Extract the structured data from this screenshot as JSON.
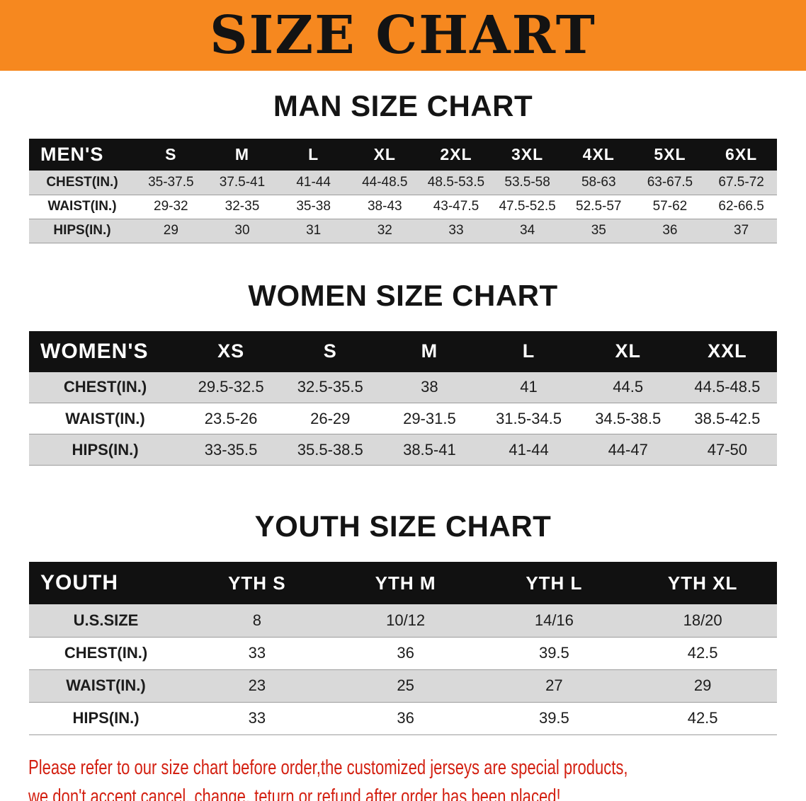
{
  "banner": {
    "title": "SIZE CHART"
  },
  "colors": {
    "banner_bg": "#f6881f",
    "header_bg": "#111111",
    "stripe_gray": "#d9d9d9",
    "footer_red": "#d32011"
  },
  "chart_data": [
    {
      "type": "table",
      "title": "MAN SIZE CHART",
      "header_label": "MEN'S",
      "columns": [
        "S",
        "M",
        "L",
        "XL",
        "2XL",
        "3XL",
        "4XL",
        "5XL",
        "6XL"
      ],
      "rows": [
        {
          "label": "CHEST(IN.)",
          "values": [
            "35-37.5",
            "37.5-41",
            "41-44",
            "44-48.5",
            "48.5-53.5",
            "53.5-58",
            "58-63",
            "63-67.5",
            "67.5-72"
          ]
        },
        {
          "label": "WAIST(IN.)",
          "values": [
            "29-32",
            "32-35",
            "35-38",
            "38-43",
            "43-47.5",
            "47.5-52.5",
            "52.5-57",
            "57-62",
            "62-66.5"
          ]
        },
        {
          "label": "HIPS(IN.)",
          "values": [
            "29",
            "30",
            "31",
            "32",
            "33",
            "34",
            "35",
            "36",
            "37"
          ]
        }
      ]
    },
    {
      "type": "table",
      "title": "WOMEN SIZE CHART",
      "header_label": "WOMEN'S",
      "columns": [
        "XS",
        "S",
        "M",
        "L",
        "XL",
        "XXL"
      ],
      "rows": [
        {
          "label": "CHEST(IN.)",
          "values": [
            "29.5-32.5",
            "32.5-35.5",
            "38",
            "41",
            "44.5",
            "44.5-48.5"
          ]
        },
        {
          "label": "WAIST(IN.)",
          "values": [
            "23.5-26",
            "26-29",
            "29-31.5",
            "31.5-34.5",
            "34.5-38.5",
            "38.5-42.5"
          ]
        },
        {
          "label": "HIPS(IN.)",
          "values": [
            "33-35.5",
            "35.5-38.5",
            "38.5-41",
            "41-44",
            "44-47",
            "47-50"
          ]
        }
      ]
    },
    {
      "type": "table",
      "title": "YOUTH SIZE CHART",
      "header_label": "YOUTH",
      "columns": [
        "YTH S",
        "YTH M",
        "YTH L",
        "YTH XL"
      ],
      "rows": [
        {
          "label": "U.S.SIZE",
          "values": [
            "8",
            "10/12",
            "14/16",
            "18/20"
          ]
        },
        {
          "label": "CHEST(IN.)",
          "values": [
            "33",
            "36",
            "39.5",
            "42.5"
          ]
        },
        {
          "label": "WAIST(IN.)",
          "values": [
            "23",
            "25",
            "27",
            "29"
          ]
        },
        {
          "label": "HIPS(IN.)",
          "values": [
            "33",
            "36",
            "39.5",
            "42.5"
          ]
        }
      ]
    }
  ],
  "footer": {
    "line1": "Please refer to our size chart before order,the customized jerseys are special products,",
    "line2": "we don't accept cancel, change, teturn or refund after order has been placed!"
  }
}
